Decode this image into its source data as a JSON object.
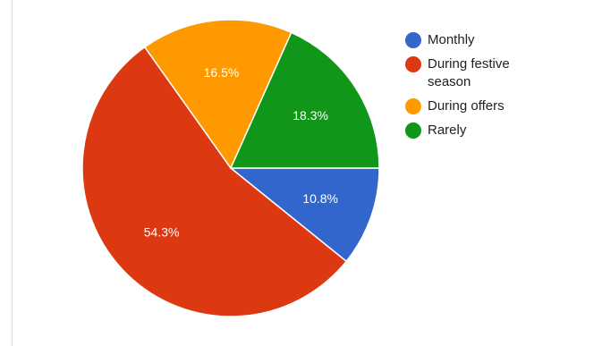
{
  "chart_data": {
    "type": "pie",
    "title": "",
    "legend_position": "right",
    "slices": [
      {
        "name": "Monthly",
        "value": 10.8,
        "label": "10.8%",
        "color": "#3366cc"
      },
      {
        "name": "During festive season",
        "value": 54.3,
        "label": "54.3%",
        "color": "#dc3912"
      },
      {
        "name": "During offers",
        "value": 16.5,
        "label": "16.5%",
        "color": "#ff9900"
      },
      {
        "name": "Rarely",
        "value": 18.3,
        "label": "18.3%",
        "color": "#109618"
      }
    ],
    "legend": [
      {
        "name": "Monthly",
        "color": "#3366cc"
      },
      {
        "name": "During festive season",
        "color": "#dc3912"
      },
      {
        "name": "During offers",
        "color": "#ff9900"
      },
      {
        "name": "Rarely",
        "color": "#109618"
      }
    ]
  }
}
